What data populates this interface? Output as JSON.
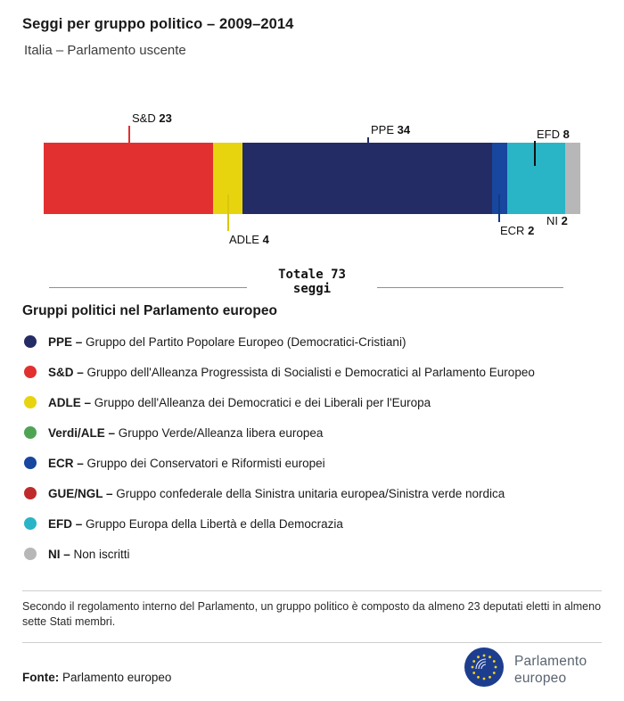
{
  "chart_data": {
    "type": "bar",
    "stacked": true,
    "orientation": "horizontal",
    "title": "Seggi per gruppo politico – 2009–2014",
    "subtitle": "Italia – Parlamento uscente",
    "total": 73,
    "total_line1": "Totale 73",
    "total_line2": "seggi",
    "categories": [
      "S&D",
      "ADLE",
      "PPE",
      "ECR",
      "EFD",
      "NI"
    ],
    "values": [
      23,
      4,
      34,
      2,
      8,
      2
    ],
    "segments": [
      {
        "label": "S&D",
        "value": 23,
        "color": "#e23030",
        "callout": "top"
      },
      {
        "label": "ADLE",
        "value": 4,
        "color": "#e7d40e",
        "callout": "bottom"
      },
      {
        "label": "PPE",
        "value": 34,
        "color": "#232c64",
        "callout": "top"
      },
      {
        "label": "ECR",
        "value": 2,
        "color": "#17479e",
        "callout": "bottom"
      },
      {
        "label": "EFD",
        "value": 8,
        "color": "#29b5c6",
        "callout": "top"
      },
      {
        "label": "NI",
        "value": 2,
        "color": "#b7b7b7",
        "callout": "bottom"
      }
    ]
  },
  "legend": {
    "heading": "Gruppi politici nel Parlamento europeo",
    "items": [
      {
        "name": "PPE –",
        "description": "Gruppo del Partito Popolare Europeo (Democratici-Cristiani)",
        "color": "#232c64"
      },
      {
        "name": "S&D –",
        "description": "Gruppo dell'Alleanza Progressista di Socialisti e Democratici al Parlamento Europeo",
        "color": "#e23030"
      },
      {
        "name": "ADLE –",
        "description": "Gruppo dell'Alleanza dei Democratici e dei Liberali per l'Europa",
        "color": "#e7d40e"
      },
      {
        "name": "Verdi/ALE –",
        "description": "Gruppo Verde/Alleanza libera europea",
        "color": "#4fa453"
      },
      {
        "name": "ECR –",
        "description": "Gruppo dei Conservatori e Riformisti europei",
        "color": "#17479e"
      },
      {
        "name": "GUE/NGL –",
        "description": "Gruppo confederale della Sinistra unitaria europea/Sinistra verde nordica",
        "color": "#c02a2a"
      },
      {
        "name": "EFD –",
        "description": "Gruppo Europa della Libertà e della Democrazia",
        "color": "#29b5c6"
      },
      {
        "name": "NI –",
        "description": "Non iscritti",
        "color": "#b7b7b7"
      }
    ]
  },
  "footnote": "Secondo il regolamento interno del Parlamento, un gruppo politico è composto da almeno 23 deputati eletti in almeno sette Stati membri.",
  "source": {
    "label": "Fonte:",
    "value": "Parlamento europeo"
  },
  "logo": {
    "line1": "Parlamento",
    "line2": "europeo"
  }
}
